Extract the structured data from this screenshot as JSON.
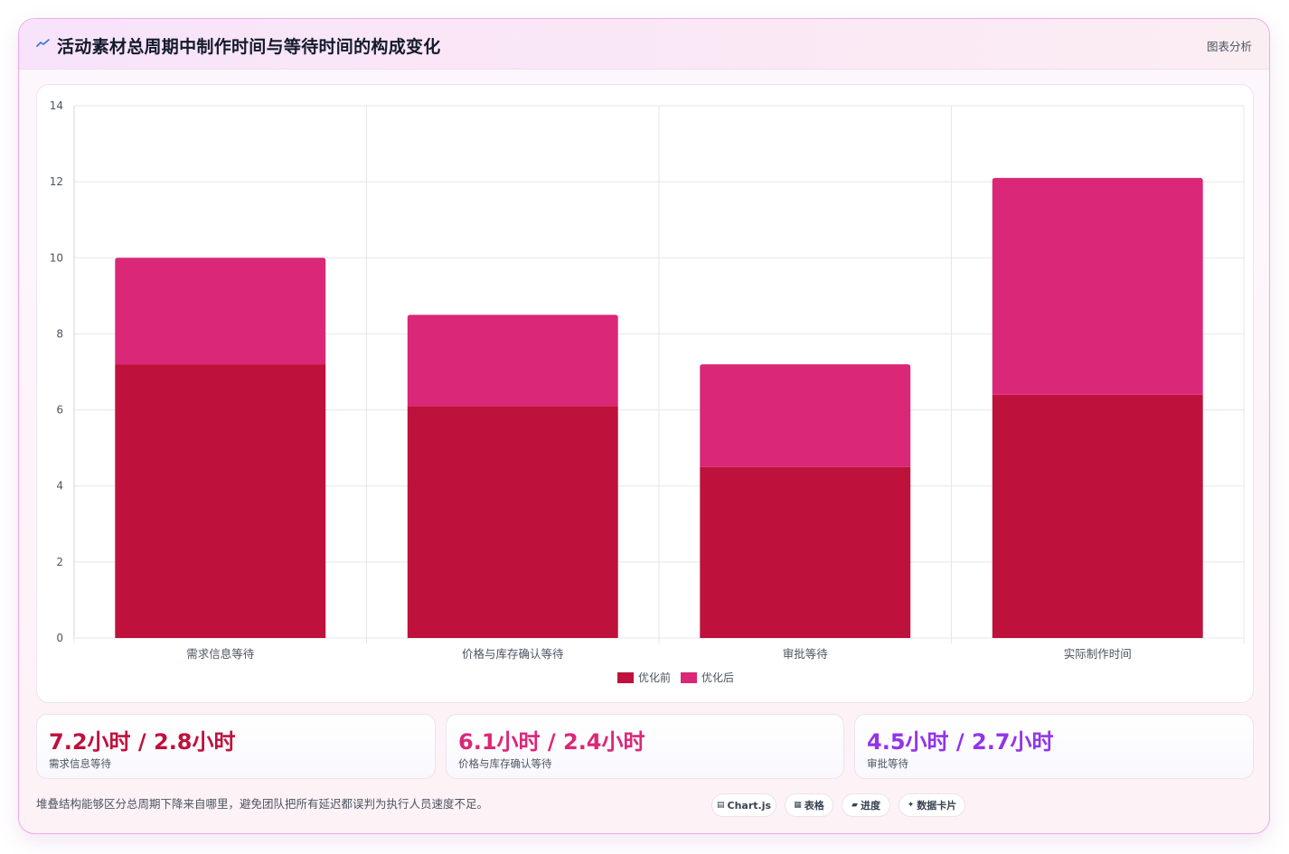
{
  "header": {
    "title": "活动素材总周期中制作时间与等待时间的构成变化",
    "title_icon": "trend-icon",
    "link_label": "图表分析"
  },
  "colors": {
    "before": "#be123c",
    "after": "#db2777",
    "stat1": "#be123c",
    "stat2": "#db2777",
    "stat3": "#9333ea",
    "grid": "#e5e7eb",
    "axis_text": "#4b5563"
  },
  "chart_data": {
    "type": "bar",
    "stacked": true,
    "categories": [
      "需求信息等待",
      "价格与库存确认等待",
      "审批等待",
      "实际制作时间"
    ],
    "series": [
      {
        "name": "优化前",
        "values": [
          7.2,
          6.1,
          4.5,
          6.4
        ]
      },
      {
        "name": "优化后",
        "values": [
          2.8,
          2.4,
          2.7,
          5.7
        ]
      }
    ],
    "ylim": [
      0,
      14
    ],
    "yticks": [
      "0",
      "2",
      "4",
      "6",
      "8",
      "10",
      "12",
      "14"
    ],
    "grid": true,
    "legend": "bottom-center",
    "title": "",
    "xlabel": "",
    "ylabel": ""
  },
  "stats": [
    {
      "value": "7.2小时 / 2.8小时",
      "label": "需求信息等待"
    },
    {
      "value": "6.1小时 / 2.4小时",
      "label": "价格与库存确认等待"
    },
    {
      "value": "4.5小时 / 2.7小时",
      "label": "审批等待"
    }
  ],
  "footnote": "堆叠结构能够区分总周期下降来自哪里，避免团队把所有延迟都误判为执行人员速度不足。",
  "chips": [
    {
      "icon": "▤",
      "icon_name": "chart-icon",
      "label": "Chart.js"
    },
    {
      "icon": "▦",
      "icon_name": "table-icon",
      "label": "表格"
    },
    {
      "icon": "▰",
      "icon_name": "progress-icon",
      "label": "进度"
    },
    {
      "icon": "✦",
      "icon_name": "sparkle-icon",
      "label": "数据卡片"
    }
  ]
}
